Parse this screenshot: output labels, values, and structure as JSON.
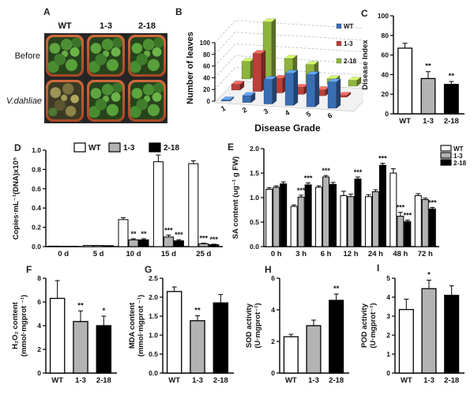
{
  "panel_a": {
    "label": "A",
    "col_headers": [
      "WT",
      "1-3",
      "2-18"
    ],
    "row_headers": [
      "Before",
      "V.dahliae"
    ],
    "pot_colors": {
      "pot_rim": "#c0552f",
      "healthy_foliage": "#4c8f33",
      "wilted_foliage": "#9a9455",
      "tray": "#262626"
    }
  },
  "chart_data": [
    {
      "id": "B",
      "label": "B",
      "type": "bar3d",
      "xlabel": "Disease Grade",
      "ylabel": "Number of leaves",
      "ylim": [
        0,
        100
      ],
      "yticks": [
        "0",
        "20",
        "40",
        "60",
        "80",
        "100"
      ],
      "categories": [
        "1",
        "2",
        "3",
        "4",
        "5",
        "6"
      ],
      "series": [
        {
          "name": "WT",
          "color": "#3a6db3",
          "values": [
            1,
            12,
            42,
            55,
            55,
            45
          ]
        },
        {
          "name": "1-3",
          "color": "#b8413a",
          "values": [
            10,
            65,
            25,
            12,
            10,
            3
          ]
        },
        {
          "name": "2-18",
          "color": "#8fb43e",
          "values": [
            30,
            100,
            40,
            32,
            10,
            10
          ]
        }
      ],
      "legend_position": "right",
      "grid": "dashed"
    },
    {
      "id": "C",
      "label": "C",
      "type": "bar",
      "xlabel": "",
      "ylabel": "Disease Index",
      "ylim": [
        0,
        100
      ],
      "yticks": [
        "0",
        "20",
        "40",
        "60",
        "80",
        "100"
      ],
      "categories": [
        "WT",
        "1-3",
        "2-18"
      ],
      "values": [
        67,
        36,
        30
      ],
      "errors": [
        5,
        7,
        3
      ],
      "sig": [
        "",
        "**",
        "**"
      ],
      "colors": [
        "#ffffff",
        "#b3b3b3",
        "#000000"
      ]
    },
    {
      "id": "D",
      "label": "D",
      "type": "bar",
      "xlabel": "",
      "ylabel": "Copies·mL⁻¹(DNA)x10⁵",
      "ylim": [
        0,
        1.0
      ],
      "yticks": [
        "0.0",
        "0.2",
        "0.4",
        "0.6",
        "0.8",
        "1.0"
      ],
      "categories": [
        "0 d",
        "5 d",
        "10 d",
        "15 d",
        "25 d"
      ],
      "series": [
        {
          "name": "WT",
          "color": "#ffffff",
          "values": [
            0.005,
            0.012,
            0.28,
            0.88,
            0.86
          ],
          "errors": [
            0,
            0,
            0.02,
            0.07,
            0.03
          ],
          "sig": [
            "",
            "",
            "",
            "",
            ""
          ]
        },
        {
          "name": "1-3",
          "color": "#b3b3b3",
          "values": [
            0.004,
            0.012,
            0.07,
            0.1,
            0.03
          ],
          "errors": [
            0,
            0,
            0.012,
            0.02,
            0.006
          ],
          "sig": [
            "",
            "",
            "**",
            "***",
            "***"
          ]
        },
        {
          "name": "2-18",
          "color": "#000000",
          "values": [
            0.004,
            0.01,
            0.07,
            0.06,
            0.02
          ],
          "errors": [
            0,
            0,
            0.012,
            0.012,
            0.005
          ],
          "sig": [
            "",
            "",
            "**",
            "***",
            "***"
          ]
        }
      ],
      "legend_position": "top"
    },
    {
      "id": "E",
      "label": "E",
      "type": "bar",
      "xlabel": "",
      "ylabel": "SA content (ug⁻¹ g FW)",
      "ylim": [
        0,
        2.0
      ],
      "yticks": [
        "0.0",
        "0.5",
        "1.0",
        "1.5",
        "2.0"
      ],
      "categories": [
        "0 h",
        "3 h",
        "6 h",
        "12 h",
        "24 h",
        "48 h",
        "72 h"
      ],
      "series": [
        {
          "name": "WT",
          "color": "#ffffff",
          "values": [
            1.17,
            0.82,
            1.21,
            1.04,
            1.02,
            1.5,
            1.04
          ],
          "errors": [
            0.03,
            0.03,
            0.03,
            0.09,
            0.04,
            0.09,
            0.04
          ],
          "sig": [
            "",
            "",
            "",
            "",
            "",
            "",
            ""
          ]
        },
        {
          "name": "1-3",
          "color": "#b3b3b3",
          "values": [
            1.21,
            1.01,
            1.42,
            1.02,
            1.12,
            0.62,
            0.96
          ],
          "errors": [
            0.03,
            0.04,
            0.03,
            0.05,
            0.04,
            0.08,
            0.03
          ],
          "sig": [
            "",
            "***",
            "***",
            "",
            "",
            "***",
            ""
          ]
        },
        {
          "name": "2-18",
          "color": "#000000",
          "values": [
            1.28,
            1.26,
            1.27,
            1.38,
            1.66,
            0.51,
            0.77
          ],
          "errors": [
            0.04,
            0.04,
            0.04,
            0.04,
            0.04,
            0.03,
            0.03
          ],
          "sig": [
            "",
            "***",
            "",
            "***",
            "***",
            "***",
            "***"
          ]
        }
      ],
      "legend_position": "right"
    },
    {
      "id": "F",
      "label": "F",
      "type": "bar",
      "xlabel": "",
      "ylabel": [
        "H₂O₂ content",
        "(mmol·mgprot ⁻¹)"
      ],
      "ylim": [
        0,
        8
      ],
      "yticks": [
        "0",
        "2",
        "4",
        "6",
        "8"
      ],
      "categories": [
        "WT",
        "1-3",
        "2-18"
      ],
      "values": [
        6.3,
        4.35,
        4.0
      ],
      "errors": [
        1.5,
        0.9,
        0.8
      ],
      "sig": [
        "",
        "**",
        "*"
      ],
      "colors": [
        "#ffffff",
        "#b3b3b3",
        "#000000"
      ]
    },
    {
      "id": "G",
      "label": "G",
      "type": "bar",
      "xlabel": "",
      "ylabel": [
        "MDA content",
        "(mmol·mgprot ⁻¹)"
      ],
      "ylim": [
        0,
        2.5
      ],
      "yticks": [
        "0.0",
        "0.5",
        "1.0",
        "1.5",
        "2.0",
        "2.5"
      ],
      "categories": [
        "WT",
        "1-3",
        "2-18"
      ],
      "values": [
        2.15,
        1.38,
        1.85
      ],
      "errors": [
        0.12,
        0.13,
        0.22
      ],
      "sig": [
        "",
        "**",
        ""
      ],
      "colors": [
        "#ffffff",
        "#b3b3b3",
        "#000000"
      ]
    },
    {
      "id": "H",
      "label": "H",
      "type": "bar",
      "xlabel": "",
      "ylabel": [
        "SOD activity",
        "(U·mgprot⁻¹)"
      ],
      "ylim": [
        0,
        6
      ],
      "yticks": [
        "0",
        "2",
        "4",
        "6"
      ],
      "categories": [
        "WT",
        "1-3",
        "2-18"
      ],
      "values": [
        2.3,
        3.0,
        4.6
      ],
      "errors": [
        0.15,
        0.35,
        0.4
      ],
      "sig": [
        "",
        "",
        "**"
      ],
      "colors": [
        "#ffffff",
        "#b3b3b3",
        "#000000"
      ]
    },
    {
      "id": "I",
      "label": "I",
      "type": "bar",
      "xlabel": "",
      "ylabel": [
        "POD activity",
        "(U·mgprot⁻¹)"
      ],
      "ylim": [
        0,
        5
      ],
      "yticks": [
        "0",
        "1",
        "2",
        "3",
        "4",
        "5"
      ],
      "categories": [
        "WT",
        "1-3",
        "2-18"
      ],
      "values": [
        3.35,
        4.45,
        4.1
      ],
      "errors": [
        0.55,
        0.45,
        0.5
      ],
      "sig": [
        "",
        "*",
        ""
      ],
      "colors": [
        "#ffffff",
        "#b3b3b3",
        "#000000"
      ]
    }
  ]
}
